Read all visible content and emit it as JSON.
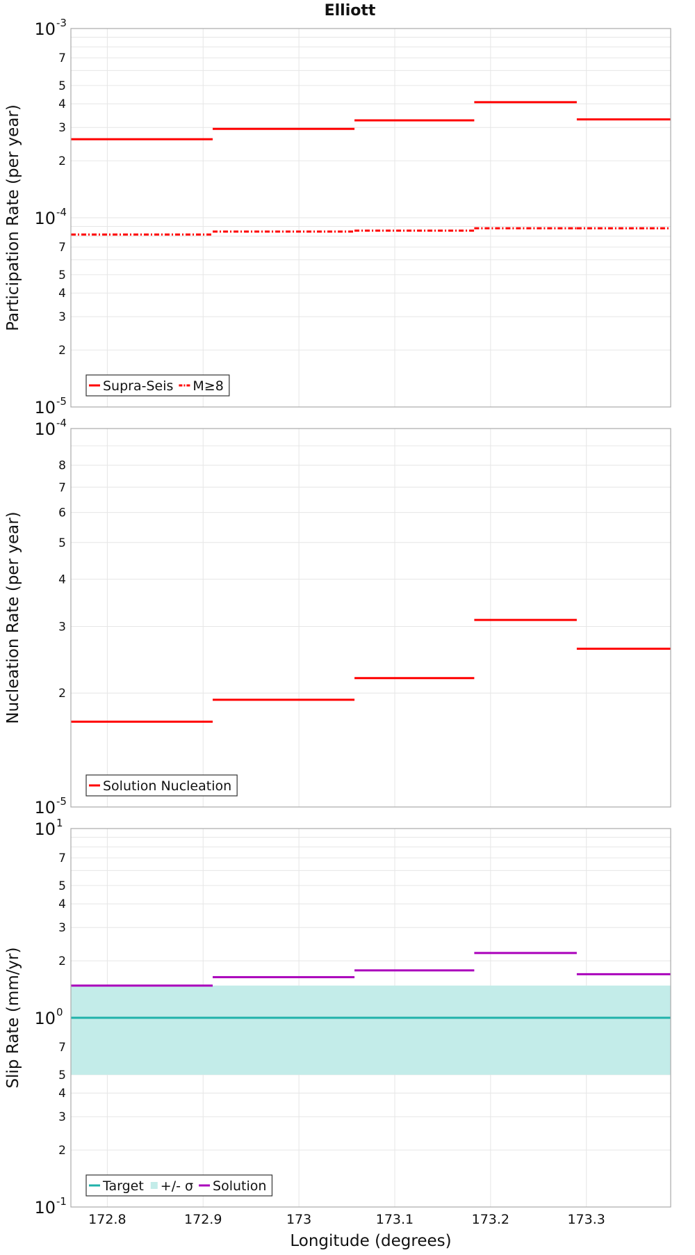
{
  "chart_data": [
    {
      "type": "line",
      "title": "Elliott",
      "ylabel": "Participation Rate (per year)",
      "xlabel": "",
      "yscale": "log",
      "ylim": [
        1e-05,
        0.001
      ],
      "xlim": [
        172.762,
        173.388
      ],
      "xticks": [],
      "y_tick_labels": {
        "minor": [
          "2",
          "3",
          "4",
          "5",
          "7"
        ],
        "major": [
          {
            "base": "10",
            "exp": "-5"
          },
          {
            "base": "10",
            "exp": "-4"
          },
          {
            "base": "10",
            "exp": "-3"
          }
        ]
      },
      "grid": true,
      "legend_position": "bottom-left",
      "series": [
        {
          "name": "Supra-Seis",
          "style": "solid",
          "color": "#ff0000",
          "segments": [
            {
              "x0": 172.762,
              "x1": 172.91,
              "y": 0.00026
            },
            {
              "x0": 172.91,
              "x1": 173.058,
              "y": 0.000295
            },
            {
              "x0": 173.058,
              "x1": 173.183,
              "y": 0.000327
            },
            {
              "x0": 173.183,
              "x1": 173.29,
              "y": 0.000408
            },
            {
              "x0": 173.29,
              "x1": 173.388,
              "y": 0.000331
            }
          ]
        },
        {
          "name": "M≥8",
          "style": "dashdot",
          "color": "#ff0000",
          "segments": [
            {
              "x0": 172.762,
              "x1": 172.91,
              "y": 8.15e-05
            },
            {
              "x0": 172.91,
              "x1": 173.058,
              "y": 8.45e-05
            },
            {
              "x0": 173.058,
              "x1": 173.183,
              "y": 8.55e-05
            },
            {
              "x0": 173.183,
              "x1": 173.29,
              "y": 8.8e-05
            },
            {
              "x0": 173.29,
              "x1": 173.388,
              "y": 8.8e-05
            }
          ]
        }
      ]
    },
    {
      "type": "line",
      "title": "",
      "ylabel": "Nucleation Rate (per year)",
      "xlabel": "",
      "yscale": "log",
      "ylim": [
        1e-05,
        0.0001
      ],
      "xlim": [
        172.762,
        173.388
      ],
      "xticks": [],
      "y_tick_labels": {
        "minor": [
          "2",
          "3",
          "4",
          "5",
          "6",
          "7",
          "8"
        ],
        "major": [
          {
            "base": "10",
            "exp": "-5"
          },
          {
            "base": "10",
            "exp": "-4"
          }
        ]
      },
      "grid": true,
      "legend_position": "bottom-left",
      "series": [
        {
          "name": "Solution Nucleation",
          "style": "solid",
          "color": "#ff0000",
          "segments": [
            {
              "x0": 172.762,
              "x1": 172.91,
              "y": 1.68e-05
            },
            {
              "x0": 172.91,
              "x1": 173.058,
              "y": 1.92e-05
            },
            {
              "x0": 173.058,
              "x1": 173.183,
              "y": 2.19e-05
            },
            {
              "x0": 173.183,
              "x1": 173.29,
              "y": 3.12e-05
            },
            {
              "x0": 173.29,
              "x1": 173.388,
              "y": 2.62e-05
            }
          ]
        }
      ]
    },
    {
      "type": "line",
      "title": "",
      "ylabel": "Slip Rate (mm/yr)",
      "xlabel": "Longitude (degrees)",
      "yscale": "log",
      "ylim": [
        0.1,
        10
      ],
      "xlim": [
        172.762,
        173.388
      ],
      "xticks": [
        172.8,
        172.9,
        173,
        173.1,
        173.2,
        173.3
      ],
      "xtick_labels": [
        "172.8",
        "172.9",
        "173",
        "173.1",
        "173.2",
        "173.3"
      ],
      "y_tick_labels": {
        "minor": [
          "2",
          "3",
          "4",
          "5",
          "7"
        ],
        "major": [
          {
            "base": "10",
            "exp": "-1"
          },
          {
            "base": "10",
            "exp": "0"
          },
          {
            "base": "10",
            "exp": "1"
          }
        ]
      },
      "grid": true,
      "legend_position": "bottom-left",
      "band": {
        "name": "+/- σ",
        "color": "#c3ece9",
        "low": 0.5,
        "high": 1.48
      },
      "series": [
        {
          "name": "Target",
          "style": "solid",
          "color": "#20b2aa",
          "segments": [
            {
              "x0": 172.762,
              "x1": 173.388,
              "y": 1.0
            }
          ]
        },
        {
          "name": "Solution",
          "style": "solid",
          "color": "#aa00bb",
          "segments": [
            {
              "x0": 172.762,
              "x1": 172.91,
              "y": 1.48
            },
            {
              "x0": 172.91,
              "x1": 173.058,
              "y": 1.64
            },
            {
              "x0": 173.058,
              "x1": 173.183,
              "y": 1.78
            },
            {
              "x0": 173.183,
              "x1": 173.29,
              "y": 2.2
            },
            {
              "x0": 173.29,
              "x1": 173.388,
              "y": 1.7
            }
          ]
        }
      ],
      "legend_order": [
        "Target",
        "+/- σ",
        "Solution"
      ]
    }
  ]
}
